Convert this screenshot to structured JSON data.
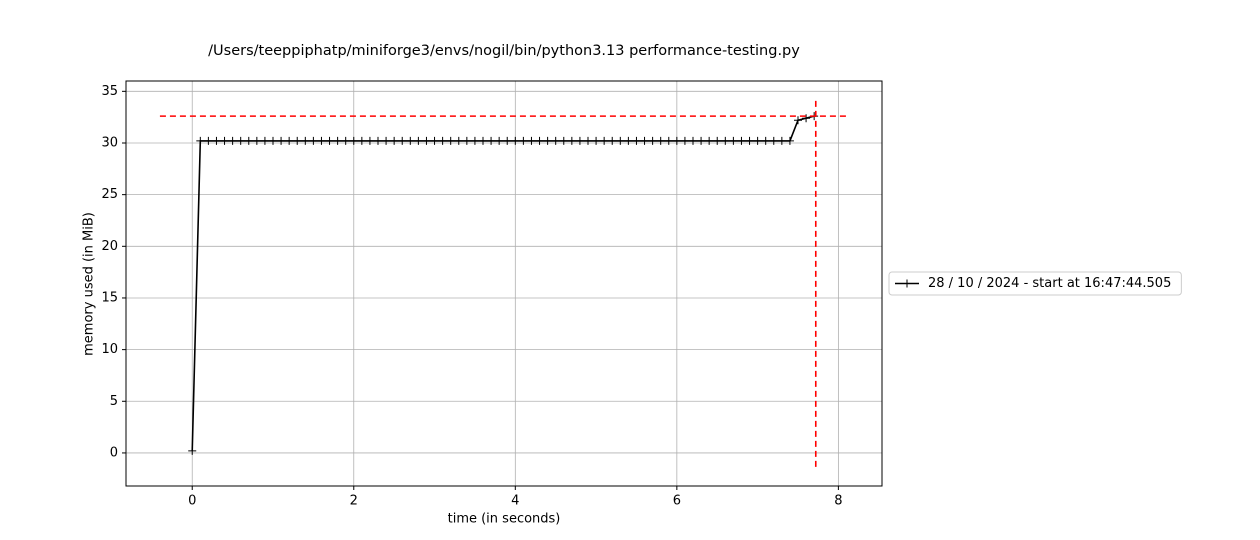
{
  "chart_data": {
    "type": "line",
    "title": "/Users/teeppiphatp/miniforge3/envs/nogil/bin/python3.13 performance-testing.py",
    "x_label": "time (in seconds)",
    "y_label": "memory used (in MiB)",
    "x": [
      0,
      0.1,
      0.2,
      0.3,
      0.4,
      0.5,
      0.6,
      0.7,
      0.8,
      0.9,
      1.0,
      1.1,
      1.2,
      1.3,
      1.4,
      1.5,
      1.6,
      1.7,
      1.8,
      1.9,
      2.0,
      2.1,
      2.2,
      2.3,
      2.4,
      2.5,
      2.6,
      2.7,
      2.8,
      2.9,
      3.0,
      3.1,
      3.2,
      3.3,
      3.4,
      3.5,
      3.6,
      3.7,
      3.8,
      3.9,
      4.0,
      4.1,
      4.2,
      4.3,
      4.4,
      4.5,
      4.6,
      4.7,
      4.8,
      4.9,
      5.0,
      5.1,
      5.2,
      5.3,
      5.4,
      5.5,
      5.6,
      5.7,
      5.8,
      5.9,
      6.0,
      6.1,
      6.2,
      6.3,
      6.4,
      6.5,
      6.6,
      6.7,
      6.8,
      6.9,
      7.0,
      7.1,
      7.2,
      7.3,
      7.4,
      7.5,
      7.6,
      7.7
    ],
    "series": [
      {
        "name": "28 / 10 / 2024 - start at 16:47:44.505",
        "color": "#000000",
        "values": [
          0.2,
          30.2,
          30.2,
          30.2,
          30.2,
          30.2,
          30.2,
          30.2,
          30.2,
          30.2,
          30.2,
          30.2,
          30.2,
          30.2,
          30.2,
          30.2,
          30.2,
          30.2,
          30.2,
          30.2,
          30.2,
          30.2,
          30.2,
          30.2,
          30.2,
          30.2,
          30.2,
          30.2,
          30.2,
          30.2,
          30.2,
          30.2,
          30.2,
          30.2,
          30.2,
          30.2,
          30.2,
          30.2,
          30.2,
          30.2,
          30.2,
          30.2,
          30.2,
          30.2,
          30.2,
          30.2,
          30.2,
          30.2,
          30.2,
          30.2,
          30.2,
          30.2,
          30.2,
          30.2,
          30.2,
          30.2,
          30.2,
          30.2,
          30.2,
          30.2,
          30.2,
          30.2,
          30.2,
          30.2,
          30.2,
          30.2,
          30.2,
          30.2,
          30.2,
          30.2,
          30.2,
          30.2,
          30.2,
          30.2,
          30.2,
          32.2,
          32.4,
          32.6
        ]
      }
    ],
    "hline": {
      "y": 32.6,
      "x": [
        -0.4,
        8.1
      ],
      "color": "#ff0000"
    },
    "vline": {
      "x": 7.72,
      "y": [
        -1.35,
        34.1
      ],
      "color": "#ff0000"
    },
    "xlim": [
      -0.82,
      8.54
    ],
    "ylim": [
      -3.2,
      36
    ],
    "xticks": [
      0,
      2,
      4,
      6,
      8
    ],
    "yticks": [
      0,
      5,
      10,
      15,
      20,
      25,
      30,
      35
    ],
    "grid": true,
    "legend": "outside-right"
  }
}
